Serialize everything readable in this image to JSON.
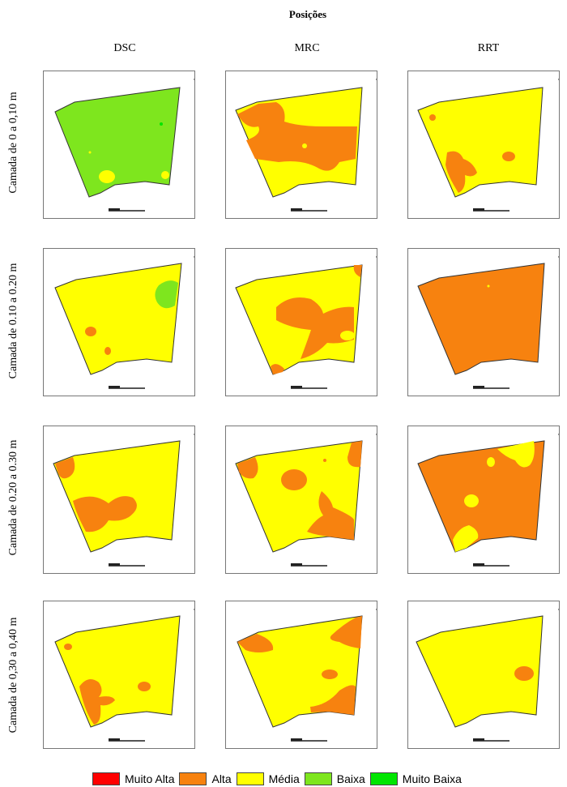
{
  "figure": {
    "title": "Posições",
    "columns": [
      "DSC",
      "MRC",
      "RRT"
    ],
    "rows": [
      "Camada de 0 a 0,10 m",
      "Camada de 0.10 a 0.20 m",
      "Camada de 0.20 a 0.30 m",
      "Camada de 0,30 a 0,40 m"
    ],
    "panels": [
      {
        "row": 0,
        "col": 0,
        "base_class": "Baixa"
      },
      {
        "row": 0,
        "col": 1,
        "base_class": "Média"
      },
      {
        "row": 0,
        "col": 2,
        "base_class": "Média"
      },
      {
        "row": 1,
        "col": 0,
        "base_class": "Média"
      },
      {
        "row": 1,
        "col": 1,
        "base_class": "Média"
      },
      {
        "row": 1,
        "col": 2,
        "base_class": "Alta"
      },
      {
        "row": 2,
        "col": 0,
        "base_class": "Média"
      },
      {
        "row": 2,
        "col": 1,
        "base_class": "Média"
      },
      {
        "row": 2,
        "col": 2,
        "base_class": "Alta"
      },
      {
        "row": 3,
        "col": 0,
        "base_class": "Média"
      },
      {
        "row": 3,
        "col": 1,
        "base_class": "Média"
      },
      {
        "row": 3,
        "col": 2,
        "base_class": "Média"
      }
    ],
    "icons": {
      "north_arrow": "north-arrow-icon",
      "scale_bar": "scale-bar-icon"
    }
  },
  "legend": [
    {
      "label": "Muito Alta",
      "color": "#ff0000"
    },
    {
      "label": "Alta",
      "color": "#f7820f"
    },
    {
      "label": "Média",
      "color": "#ffff00"
    },
    {
      "label": "Baixa",
      "color": "#7ee61e"
    },
    {
      "label": "Muito Baixa",
      "color": "#00e600"
    }
  ]
}
